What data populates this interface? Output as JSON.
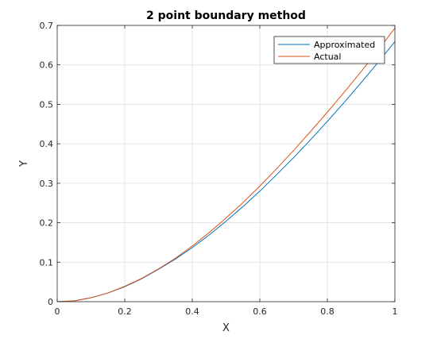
{
  "chart_data": {
    "type": "line",
    "title": "2 point boundary method",
    "xlabel": "X",
    "ylabel": "Y",
    "xlim": [
      0,
      1
    ],
    "ylim": [
      0,
      0.7
    ],
    "xticks": [
      0,
      0.2,
      0.4,
      0.6,
      0.8,
      1
    ],
    "xtick_labels": [
      "0",
      "0.2",
      "0.4",
      "0.6",
      "0.8",
      "1"
    ],
    "yticks": [
      0,
      0.1,
      0.2,
      0.3,
      0.4,
      0.5,
      0.6,
      0.7
    ],
    "ytick_labels": [
      "0",
      "0.1",
      "0.2",
      "0.3",
      "0.4",
      "0.5",
      "0.6",
      "0.7"
    ],
    "grid": true,
    "legend_position": "top-right",
    "x": [
      0,
      0.05,
      0.1,
      0.15,
      0.2,
      0.25,
      0.3,
      0.35,
      0.4,
      0.45,
      0.5,
      0.55,
      0.6,
      0.65,
      0.7,
      0.75,
      0.8,
      0.85,
      0.9,
      0.95,
      1.0
    ],
    "series": [
      {
        "name": "Approximated",
        "color": "#0072BD",
        "values": [
          0,
          0.002,
          0.01,
          0.022,
          0.038,
          0.058,
          0.082,
          0.108,
          0.137,
          0.169,
          0.204,
          0.241,
          0.28,
          0.322,
          0.365,
          0.41,
          0.457,
          0.505,
          0.555,
          0.606,
          0.659
        ]
      },
      {
        "name": "Actual",
        "color": "#D95319",
        "values": [
          0,
          0.002,
          0.01,
          0.022,
          0.039,
          0.059,
          0.083,
          0.11,
          0.141,
          0.175,
          0.212,
          0.251,
          0.293,
          0.337,
          0.383,
          0.431,
          0.48,
          0.531,
          0.583,
          0.637,
          0.693
        ]
      }
    ]
  }
}
